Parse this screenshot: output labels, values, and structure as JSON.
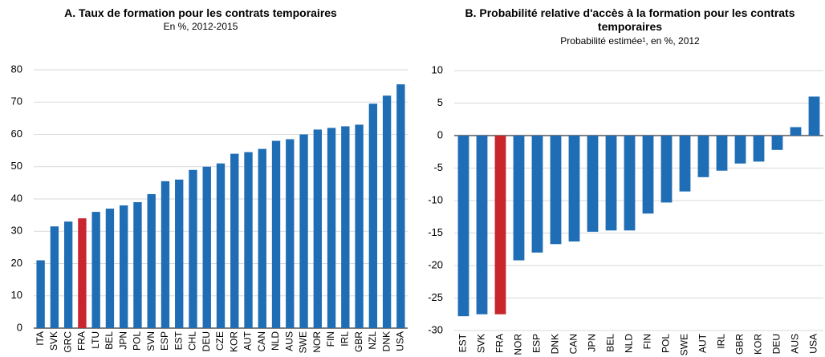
{
  "chart_data": [
    {
      "type": "bar",
      "title": "A. Taux de formation pour les contrats temporaires",
      "subtitle": "En %, 2012-2015",
      "categories": [
        "ITA",
        "SVK",
        "GRC",
        "FRA",
        "LTU",
        "BEL",
        "JPN",
        "POL",
        "SVN",
        "ESP",
        "EST",
        "CHL",
        "DEU",
        "CZE",
        "KOR",
        "AUT",
        "CAN",
        "NLD",
        "AUS",
        "SWE",
        "NOR",
        "FIN",
        "IRL",
        "GBR",
        "NZL",
        "DNK",
        "USA"
      ],
      "values": [
        21,
        31.5,
        33,
        34,
        36,
        37,
        38,
        39,
        41.5,
        45.5,
        46,
        49,
        50,
        51,
        54,
        54.5,
        55.5,
        58,
        58.5,
        60,
        61.5,
        62,
        62.5,
        63,
        69.5,
        72,
        75.5
      ],
      "colors": [
        "#1f6db5",
        "#1f6db5",
        "#1f6db5",
        "#c8262c",
        "#1f6db5",
        "#1f6db5",
        "#1f6db5",
        "#1f6db5",
        "#1f6db5",
        "#1f6db5",
        "#1f6db5",
        "#1f6db5",
        "#1f6db5",
        "#1f6db5",
        "#1f6db5",
        "#1f6db5",
        "#1f6db5",
        "#1f6db5",
        "#1f6db5",
        "#1f6db5",
        "#1f6db5",
        "#1f6db5",
        "#1f6db5",
        "#1f6db5",
        "#1f6db5",
        "#1f6db5",
        "#1f6db5"
      ],
      "ylim": [
        0,
        80
      ],
      "yticks": [
        0,
        10,
        20,
        30,
        40,
        50,
        60,
        70,
        80
      ],
      "grid": true
    },
    {
      "type": "bar",
      "title": "B. Probabilité relative d'accès à la formation pour les contrats temporaires",
      "subtitle": "Probabilité estimée¹, en %, 2012",
      "categories": [
        "EST",
        "SVK",
        "FRA",
        "NOR",
        "ESP",
        "DNK",
        "CAN",
        "JPN",
        "BEL",
        "NLD",
        "FIN",
        "POL",
        "SWE",
        "AUT",
        "IRL",
        "GBR",
        "KOR",
        "DEU",
        "AUS",
        "USA"
      ],
      "values": [
        -27.8,
        -27.5,
        -27.5,
        -19.2,
        -18,
        -16.7,
        -16.3,
        -14.8,
        -14.6,
        -14.6,
        -12,
        -10.3,
        -8.6,
        -6.4,
        -5.4,
        -4.3,
        -4,
        -2.2,
        1.3,
        6
      ],
      "colors": [
        "#1f6db5",
        "#1f6db5",
        "#c8262c",
        "#1f6db5",
        "#1f6db5",
        "#1f6db5",
        "#1f6db5",
        "#1f6db5",
        "#1f6db5",
        "#1f6db5",
        "#1f6db5",
        "#1f6db5",
        "#1f6db5",
        "#1f6db5",
        "#1f6db5",
        "#1f6db5",
        "#1f6db5",
        "#1f6db5",
        "#1f6db5",
        "#1f6db5"
      ],
      "ylim": [
        -30,
        10
      ],
      "yticks": [
        -30,
        -25,
        -20,
        -15,
        -10,
        -5,
        0,
        5,
        10
      ],
      "grid": true
    }
  ]
}
